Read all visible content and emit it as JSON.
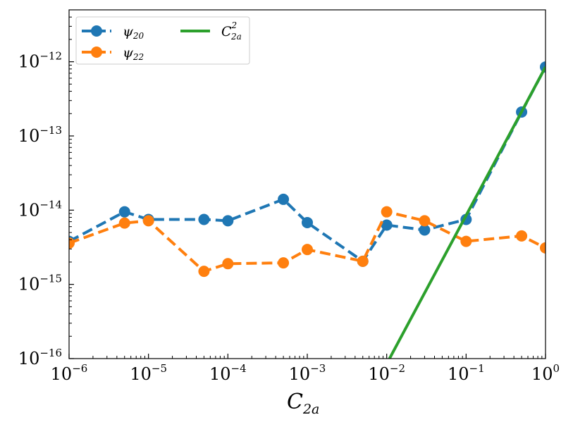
{
  "chart_data": {
    "type": "line",
    "xscale": "log",
    "yscale": "log",
    "xlim": [
      1e-06,
      1
    ],
    "ylim": [
      1e-16,
      5e-12
    ],
    "xlabel": {
      "base": "C",
      "sub": "2a"
    },
    "ylabel": "",
    "grid": false,
    "legend_position": "top-left",
    "x_ticks": [
      {
        "value": 1e-06,
        "base": "10",
        "exp": "−6"
      },
      {
        "value": 1e-05,
        "base": "10",
        "exp": "−5"
      },
      {
        "value": 0.0001,
        "base": "10",
        "exp": "−4"
      },
      {
        "value": 0.001,
        "base": "10",
        "exp": "−3"
      },
      {
        "value": 0.01,
        "base": "10",
        "exp": "−2"
      },
      {
        "value": 0.1,
        "base": "10",
        "exp": "−1"
      },
      {
        "value": 1,
        "base": "10",
        "exp": "0"
      }
    ],
    "y_ticks": [
      {
        "value": 1e-16,
        "base": "10",
        "exp": "−16"
      },
      {
        "value": 1e-15,
        "base": "10",
        "exp": "−15"
      },
      {
        "value": 1e-14,
        "base": "10",
        "exp": "−14"
      },
      {
        "value": 1e-13,
        "base": "10",
        "exp": "−13"
      },
      {
        "value": 1e-12,
        "base": "10",
        "exp": "−12"
      }
    ],
    "series": [
      {
        "name": "psi_20",
        "label": {
          "base": "ψ",
          "sub": "20"
        },
        "color": "#1f77b4",
        "style": "dashed",
        "marker": "circle",
        "x": [
          1e-06,
          5e-06,
          1e-05,
          5e-05,
          0.0001,
          0.0005,
          0.001,
          0.005,
          0.01,
          0.03,
          0.1,
          0.5,
          1
        ],
        "y": [
          3.8e-15,
          9.5e-15,
          7.5e-15,
          7.5e-15,
          7.2e-15,
          1.4e-14,
          6.8e-15,
          2.05e-15,
          6.3e-15,
          5.4e-15,
          7.5e-15,
          2.1e-13,
          8.5e-13
        ]
      },
      {
        "name": "psi_22",
        "label": {
          "base": "ψ",
          "sub": "22"
        },
        "color": "#ff7f0e",
        "style": "dashed",
        "marker": "circle",
        "x": [
          1e-06,
          5e-06,
          1e-05,
          5e-05,
          0.0001,
          0.0005,
          0.001,
          0.005,
          0.01,
          0.03,
          0.1,
          0.5,
          1
        ],
        "y": [
          3.6e-15,
          6.7e-15,
          7.2e-15,
          1.5e-15,
          1.9e-15,
          1.95e-15,
          2.95e-15,
          2.05e-15,
          9.5e-15,
          7.2e-15,
          3.8e-15,
          4.5e-15,
          3.1e-15
        ]
      },
      {
        "name": "C_2a_squared",
        "label": {
          "base": "C",
          "sub": "2a",
          "sup": "2"
        },
        "color": "#2ca02c",
        "style": "solid",
        "marker": "none",
        "x": [
          0.01,
          1
        ],
        "y": [
          8.5e-17,
          8.5e-13
        ]
      }
    ]
  }
}
